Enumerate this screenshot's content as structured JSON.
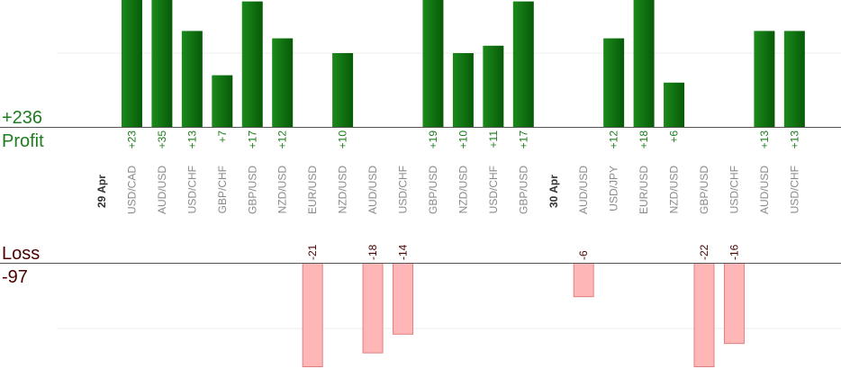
{
  "summary": {
    "profit_total": "+236",
    "profit_label": "Profit",
    "loss_label": "Loss",
    "loss_total": "-97"
  },
  "colors": {
    "profit_bar": "#0e6b0e",
    "profit_label": "#1e7d1e",
    "loss_bar": "#ffb6b6",
    "loss_border": "#e08080",
    "loss_label": "#4a0000",
    "axis": "#555555",
    "grid": "#eeeeee"
  },
  "chart_data": {
    "type": "bar",
    "ylim_profit": [
      0,
      30
    ],
    "ylim_loss": [
      0,
      22
    ],
    "columns": [
      {
        "kind": "date",
        "label": "29 Apr"
      },
      {
        "kind": "trade",
        "category": "USD/CAD",
        "value": 23
      },
      {
        "kind": "trade",
        "category": "AUD/USD",
        "value": 35
      },
      {
        "kind": "trade",
        "category": "USD/CHF",
        "value": 13
      },
      {
        "kind": "trade",
        "category": "GBP/CHF",
        "value": 7
      },
      {
        "kind": "trade",
        "category": "GBP/USD",
        "value": 17
      },
      {
        "kind": "trade",
        "category": "NZD/USD",
        "value": 12
      },
      {
        "kind": "trade",
        "category": "EUR/USD",
        "value": -21
      },
      {
        "kind": "trade",
        "category": "NZD/USD",
        "value": 10
      },
      {
        "kind": "trade",
        "category": "AUD/USD",
        "value": -18
      },
      {
        "kind": "trade",
        "category": "USD/CHF",
        "value": -14
      },
      {
        "kind": "trade",
        "category": "GBP/USD",
        "value": 19
      },
      {
        "kind": "trade",
        "category": "NZD/USD",
        "value": 10
      },
      {
        "kind": "trade",
        "category": "USD/CHF",
        "value": 11
      },
      {
        "kind": "trade",
        "category": "GBP/USD",
        "value": 17
      },
      {
        "kind": "date",
        "label": "30 Apr"
      },
      {
        "kind": "trade",
        "category": "AUD/USD",
        "value": -6
      },
      {
        "kind": "trade",
        "category": "USD/JPY",
        "value": 12
      },
      {
        "kind": "trade",
        "category": "EUR/USD",
        "value": 18
      },
      {
        "kind": "trade",
        "category": "NZD/USD",
        "value": 6
      },
      {
        "kind": "trade",
        "category": "GBP/USD",
        "value": -22
      },
      {
        "kind": "trade",
        "category": "USD/CHF",
        "value": -16
      },
      {
        "kind": "trade",
        "category": "AUD/USD",
        "value": 13
      },
      {
        "kind": "trade",
        "category": "USD/CHF",
        "value": 13
      }
    ]
  }
}
